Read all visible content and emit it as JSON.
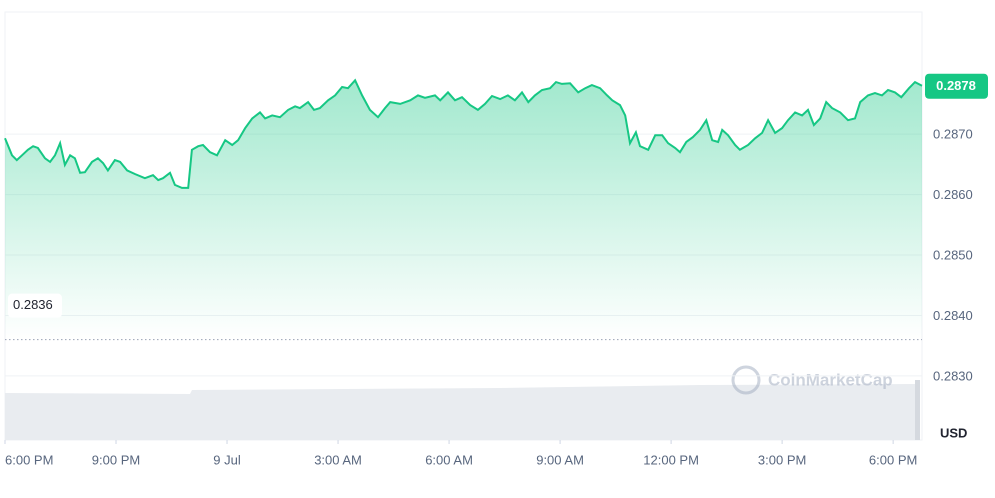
{
  "chart_data": {
    "type": "line",
    "color": "#16c784",
    "x": [
      0,
      0.19,
      0.32,
      0.46,
      0.62,
      0.76,
      0.89,
      1.08,
      1.22,
      1.35,
      1.49,
      1.62,
      1.76,
      1.89,
      2.03,
      2.16,
      2.35,
      2.51,
      2.65,
      2.78,
      2.97,
      3.11,
      3.3,
      3.51,
      3.78,
      4,
      4.14,
      4.27,
      4.46,
      4.59,
      4.78,
      4.95,
      5.05,
      5.22,
      5.35,
      5.54,
      5.73,
      5.95,
      6.14,
      6.3,
      6.49,
      6.68,
      6.89,
      7.03,
      7.22,
      7.43,
      7.65,
      7.84,
      7.97,
      8.19,
      8.35,
      8.51,
      8.73,
      8.92,
      9.11,
      9.27,
      9.46,
      9.65,
      9.86,
      10.08,
      10.27,
      10.41,
      10.68,
      10.95,
      11.16,
      11.35,
      11.62,
      11.76,
      11.97,
      12.16,
      12.35,
      12.57,
      12.78,
      12.97,
      13.16,
      13.38,
      13.59,
      13.78,
      13.97,
      14.14,
      14.32,
      14.51,
      14.73,
      14.89,
      15.05,
      15.27,
      15.49,
      15.68,
      15.86,
      16.08,
      16.27,
      16.41,
      16.62,
      16.76,
      16.89,
      17.05,
      17.16,
      17.38,
      17.57,
      17.76,
      17.92,
      18.11,
      18.24,
      18.41,
      18.59,
      18.78,
      18.95,
      19.11,
      19.27,
      19.38,
      19.54,
      19.73,
      19.86,
      20.08,
      20.27,
      20.46,
      20.62,
      20.81,
      21,
      21.16,
      21.35,
      21.54,
      21.7,
      21.86,
      22.03,
      22.19,
      22.35,
      22.57,
      22.78,
      22.97,
      23.11,
      23.32,
      23.51,
      23.7,
      23.86,
      24.05,
      24.22,
      24.43,
      24.59,
      24.78
    ],
    "values": [
      0.28693,
      0.28665,
      0.28657,
      0.28665,
      0.28674,
      0.2868,
      0.28677,
      0.2866,
      0.28654,
      0.28665,
      0.28685,
      0.28649,
      0.28665,
      0.2866,
      0.28636,
      0.28637,
      0.28654,
      0.2866,
      0.28652,
      0.2864,
      0.28657,
      0.28654,
      0.2864,
      0.28634,
      0.28627,
      0.28632,
      0.28624,
      0.28627,
      0.28636,
      0.28616,
      0.28611,
      0.28611,
      0.28674,
      0.2868,
      0.28682,
      0.2867,
      0.28665,
      0.2869,
      0.28682,
      0.2869,
      0.2871,
      0.28726,
      0.28736,
      0.28726,
      0.28731,
      0.28728,
      0.2874,
      0.28746,
      0.28743,
      0.28753,
      0.2874,
      0.28743,
      0.28756,
      0.28764,
      0.28778,
      0.28776,
      0.28789,
      0.28764,
      0.2874,
      0.28728,
      0.28743,
      0.28753,
      0.2875,
      0.28756,
      0.28764,
      0.2876,
      0.28764,
      0.28756,
      0.28769,
      0.28756,
      0.28761,
      0.28748,
      0.2874,
      0.2875,
      0.28763,
      0.28758,
      0.28764,
      0.28756,
      0.28769,
      0.28753,
      0.28764,
      0.28773,
      0.28776,
      0.28786,
      0.28783,
      0.28784,
      0.28769,
      0.28776,
      0.28781,
      0.28776,
      0.28764,
      0.28756,
      0.28748,
      0.28731,
      0.28685,
      0.28703,
      0.2868,
      0.28674,
      0.28698,
      0.28698,
      0.28685,
      0.28677,
      0.2867,
      0.28687,
      0.28695,
      0.28707,
      0.28723,
      0.2869,
      0.28687,
      0.28707,
      0.28698,
      0.28682,
      0.28674,
      0.28682,
      0.28693,
      0.28702,
      0.28723,
      0.28702,
      0.2871,
      0.28723,
      0.28736,
      0.28731,
      0.2874,
      0.28715,
      0.28726,
      0.28753,
      0.28743,
      0.28736,
      0.28723,
      0.28726,
      0.28753,
      0.28764,
      0.28768,
      0.28764,
      0.28773,
      0.28769,
      0.28761,
      0.28776,
      0.28786,
      0.2878
    ],
    "xlim": [
      0,
      24.78
    ],
    "xticks": [
      {
        "value": 0,
        "label": "6:00 PM"
      },
      {
        "value": 3,
        "label": "9:00 PM"
      },
      {
        "value": 6,
        "label": "9 Jul"
      },
      {
        "value": 9,
        "label": "3:00 AM"
      },
      {
        "value": 12,
        "label": "6:00 AM"
      },
      {
        "value": 15,
        "label": "9:00 AM"
      },
      {
        "value": 18,
        "label": "12:00 PM"
      },
      {
        "value": 21,
        "label": "3:00 PM"
      },
      {
        "value": 24,
        "label": "6:00 PM"
      }
    ],
    "ylim": [
      0.28194,
      0.28902
    ],
    "yticks": [
      {
        "value": 0.283,
        "label": "0.2830"
      },
      {
        "value": 0.284,
        "label": "0.2840"
      },
      {
        "value": 0.285,
        "label": "0.2850"
      },
      {
        "value": 0.286,
        "label": "0.2860"
      },
      {
        "value": 0.287,
        "label": "0.2870"
      }
    ],
    "grid": true,
    "baseline": {
      "value": 0.2836,
      "label": "0.2836"
    },
    "price_tag": "0.2878",
    "currency": "USD",
    "watermark": "CoinMarketCap"
  }
}
